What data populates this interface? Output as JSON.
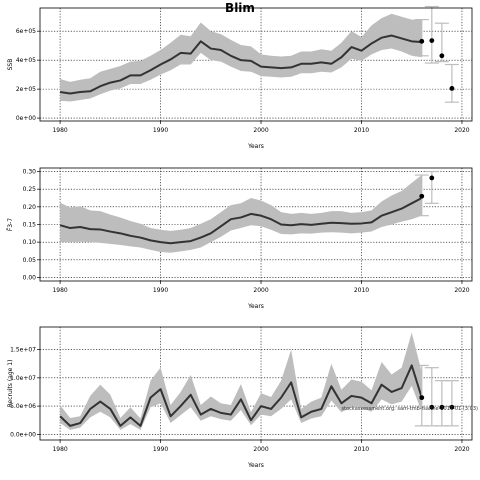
{
  "figure": {
    "title": "Blim",
    "annotation": "stockassessment.org: sam-tmb-fsaithe-2017-01 (3:03)"
  },
  "chart_data": [
    {
      "type": "line",
      "panel": "ssb",
      "title": "",
      "xlabel": "Years",
      "ylabel": "SSB",
      "xlim": [
        1978,
        2021
      ],
      "ylim": [
        -20000,
        760000
      ],
      "grid": true,
      "x_ticks": [
        1980,
        1990,
        2000,
        2010,
        2020
      ],
      "x_tick_labels": [
        "1980",
        "1990",
        "2000",
        "2010",
        "2020"
      ],
      "y_ticks": [
        0,
        200000,
        400000,
        600000
      ],
      "y_tick_labels": [
        "0e+00",
        "2e+05",
        "4e+05",
        "6e+05"
      ],
      "x": [
        1980,
        1981,
        1982,
        1983,
        1984,
        1985,
        1986,
        1987,
        1988,
        1989,
        1990,
        1991,
        1992,
        1993,
        1994,
        1995,
        1996,
        1997,
        1998,
        1999,
        2000,
        2001,
        2002,
        2003,
        2004,
        2005,
        2006,
        2007,
        2008,
        2009,
        2010,
        2011,
        2012,
        2013,
        2014,
        2015,
        2016
      ],
      "series": [
        {
          "role": "estimate",
          "values": [
            180000,
            170000,
            180000,
            185000,
            220000,
            245000,
            260000,
            295000,
            295000,
            330000,
            370000,
            405000,
            450000,
            445000,
            530000,
            480000,
            470000,
            430000,
            400000,
            395000,
            355000,
            350000,
            345000,
            350000,
            375000,
            375000,
            385000,
            375000,
            420000,
            490000,
            465000,
            515000,
            555000,
            570000,
            550000,
            530000,
            525000
          ]
        },
        {
          "role": "ci_low",
          "values": [
            120000,
            115000,
            125000,
            135000,
            165000,
            190000,
            205000,
            235000,
            235000,
            265000,
            300000,
            330000,
            370000,
            370000,
            450000,
            400000,
            390000,
            355000,
            325000,
            320000,
            290000,
            285000,
            280000,
            285000,
            310000,
            310000,
            320000,
            315000,
            350000,
            410000,
            395000,
            440000,
            470000,
            480000,
            460000,
            430000,
            420000
          ]
        },
        {
          "role": "ci_high",
          "values": [
            270000,
            250000,
            265000,
            275000,
            320000,
            340000,
            360000,
            390000,
            395000,
            430000,
            470000,
            520000,
            575000,
            565000,
            660000,
            600000,
            580000,
            540000,
            505000,
            495000,
            440000,
            430000,
            425000,
            430000,
            460000,
            460000,
            475000,
            465000,
            520000,
            600000,
            560000,
            640000,
            690000,
            720000,
            700000,
            680000,
            680000
          ]
        }
      ],
      "projection": [
        {
          "x": 2016,
          "value": 530000,
          "low": 430000,
          "high": 680000
        },
        {
          "x": 2017,
          "value": 535000,
          "low": 380000,
          "high": 770000
        },
        {
          "x": 2018,
          "value": 430000,
          "low": 390000,
          "high": 655000
        },
        {
          "x": 2019,
          "value": 205000,
          "low": 110000,
          "high": 370000
        }
      ]
    },
    {
      "type": "line",
      "panel": "fbar",
      "title": "",
      "xlabel": "Years",
      "ylabel": "F̄3-7",
      "xlim": [
        1978,
        2021
      ],
      "ylim": [
        -0.01,
        0.31
      ],
      "grid": true,
      "x_ticks": [
        1980,
        1990,
        2000,
        2010,
        2020
      ],
      "x_tick_labels": [
        "1980",
        "1990",
        "2000",
        "2010",
        "2020"
      ],
      "y_ticks": [
        0,
        0.05,
        0.1,
        0.15,
        0.2,
        0.25,
        0.3
      ],
      "y_tick_labels": [
        "0.00",
        "0.05",
        "0.10",
        "0.15",
        "0.20",
        "0.25",
        "0.30"
      ],
      "x": [
        1980,
        1981,
        1982,
        1983,
        1984,
        1985,
        1986,
        1987,
        1988,
        1989,
        1990,
        1991,
        1992,
        1993,
        1994,
        1995,
        1996,
        1997,
        1998,
        1999,
        2000,
        2001,
        2002,
        2003,
        2004,
        2005,
        2006,
        2007,
        2008,
        2009,
        2010,
        2011,
        2012,
        2013,
        2014,
        2015,
        2016
      ],
      "series": [
        {
          "role": "estimate",
          "values": [
            0.148,
            0.14,
            0.143,
            0.137,
            0.136,
            0.13,
            0.125,
            0.118,
            0.113,
            0.105,
            0.1,
            0.097,
            0.1,
            0.103,
            0.113,
            0.125,
            0.145,
            0.165,
            0.17,
            0.18,
            0.175,
            0.165,
            0.15,
            0.148,
            0.151,
            0.149,
            0.152,
            0.155,
            0.154,
            0.152,
            0.153,
            0.156,
            0.175,
            0.185,
            0.195,
            0.21,
            0.225
          ]
        },
        {
          "role": "ci_low",
          "values": [
            0.1,
            0.1,
            0.101,
            0.1,
            0.098,
            0.095,
            0.092,
            0.088,
            0.085,
            0.078,
            0.072,
            0.07,
            0.074,
            0.078,
            0.085,
            0.1,
            0.115,
            0.133,
            0.14,
            0.148,
            0.145,
            0.135,
            0.123,
            0.122,
            0.125,
            0.124,
            0.127,
            0.128,
            0.127,
            0.125,
            0.127,
            0.13,
            0.143,
            0.15,
            0.158,
            0.165,
            0.175
          ]
        },
        {
          "role": "ci_high",
          "values": [
            0.212,
            0.198,
            0.202,
            0.19,
            0.188,
            0.178,
            0.17,
            0.16,
            0.152,
            0.14,
            0.135,
            0.132,
            0.135,
            0.14,
            0.152,
            0.165,
            0.185,
            0.205,
            0.21,
            0.225,
            0.218,
            0.205,
            0.185,
            0.18,
            0.183,
            0.18,
            0.183,
            0.188,
            0.188,
            0.183,
            0.185,
            0.19,
            0.215,
            0.232,
            0.245,
            0.268,
            0.29
          ]
        }
      ],
      "projection": [
        {
          "x": 2016,
          "value": 0.23,
          "low": 0.175,
          "high": 0.29
        },
        {
          "x": 2017,
          "value": 0.282,
          "low": 0.21,
          "high": 0.3
        }
      ]
    },
    {
      "type": "line",
      "panel": "recruits",
      "title": "",
      "xlabel": "Years",
      "ylabel": "Recruits (age 1)",
      "xlim": [
        1978,
        2021
      ],
      "ylim": [
        -1000000,
        19000000
      ],
      "grid": true,
      "x_ticks": [
        1980,
        1990,
        2000,
        2010,
        2020
      ],
      "x_tick_labels": [
        "1980",
        "1990",
        "2000",
        "2010",
        "2020"
      ],
      "y_ticks": [
        0,
        5000000,
        10000000,
        15000000
      ],
      "y_tick_labels": [
        "0.0e+00",
        "5.0e+06",
        "1.0e+07",
        "1.5e+07"
      ],
      "x": [
        1980,
        1981,
        1982,
        1983,
        1984,
        1985,
        1986,
        1987,
        1988,
        1989,
        1990,
        1991,
        1992,
        1993,
        1994,
        1995,
        1996,
        1997,
        1998,
        1999,
        2000,
        2001,
        2002,
        2003,
        2004,
        2005,
        2006,
        2007,
        2008,
        2009,
        2010,
        2011,
        2012,
        2013,
        2014,
        2015,
        2016
      ],
      "series": [
        {
          "role": "estimate",
          "values": [
            3200000,
            1500000,
            2000000,
            4500000,
            5800000,
            4500000,
            1500000,
            3000000,
            1500000,
            6500000,
            8000000,
            3200000,
            5000000,
            7000000,
            3500000,
            4500000,
            3800000,
            3500000,
            6200000,
            2500000,
            5000000,
            4500000,
            6500000,
            9200000,
            3000000,
            4000000,
            4500000,
            8500000,
            5500000,
            6800000,
            6500000,
            5500000,
            8800000,
            7500000,
            8200000,
            12200000,
            6500000
          ]
        },
        {
          "role": "ci_low",
          "values": [
            2000000,
            800000,
            1200000,
            3000000,
            4000000,
            3000000,
            800000,
            1800000,
            800000,
            4800000,
            5500000,
            2000000,
            3400000,
            4800000,
            2400000,
            3200000,
            2700000,
            2400000,
            4300000,
            1600000,
            3500000,
            3200000,
            4500000,
            6200000,
            2000000,
            2800000,
            3200000,
            6000000,
            3900000,
            4800000,
            4700000,
            4000000,
            6200000,
            5300000,
            5800000,
            8600000,
            4000000
          ]
        },
        {
          "role": "ci_high",
          "values": [
            5200000,
            2900000,
            3200000,
            6800000,
            8800000,
            7000000,
            2900000,
            4800000,
            2800000,
            9500000,
            11800000,
            5200000,
            7500000,
            10500000,
            5200000,
            6700000,
            5500000,
            5200000,
            8900000,
            3900000,
            7300000,
            6600000,
            9500000,
            15000000,
            4500000,
            5800000,
            6500000,
            12500000,
            7900000,
            9700000,
            9300000,
            7800000,
            12800000,
            10600000,
            11800000,
            18000000,
            11000000
          ]
        }
      ],
      "projection": [
        {
          "x": 2016,
          "value": 6500000,
          "low": 1500000,
          "high": 12200000
        },
        {
          "x": 2017,
          "value": 4800000,
          "low": 1500000,
          "high": 11800000
        },
        {
          "x": 2018,
          "value": 4800000,
          "low": 1500000,
          "high": 9500000
        },
        {
          "x": 2019,
          "value": 4800000,
          "low": 1500000,
          "high": 9500000
        }
      ]
    }
  ]
}
